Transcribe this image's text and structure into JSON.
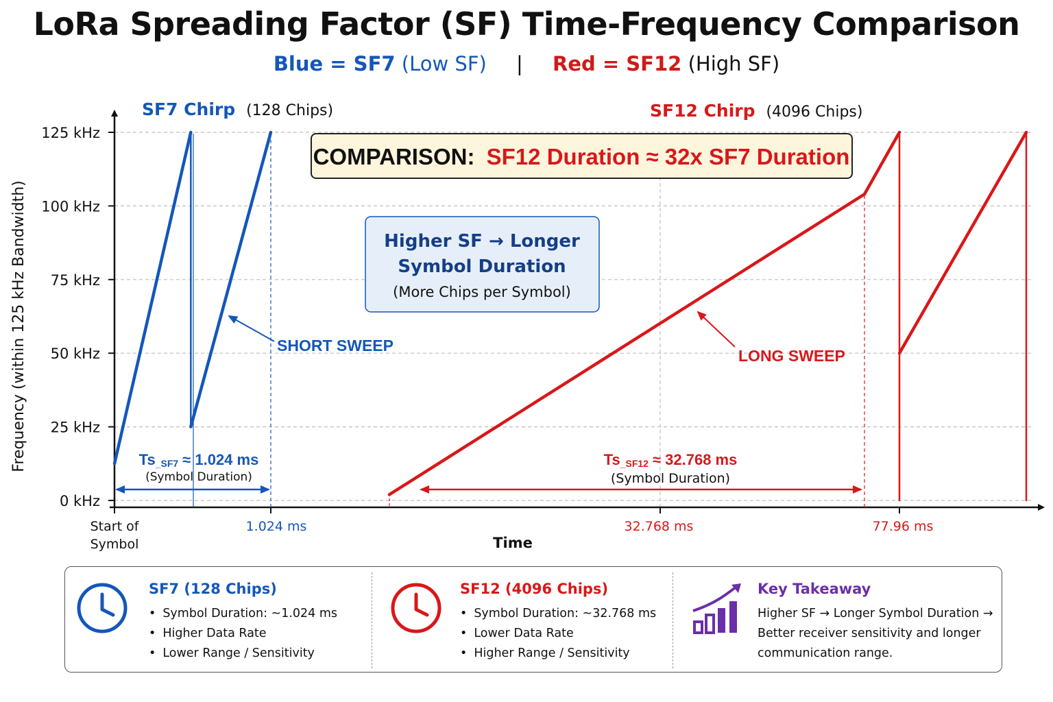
{
  "title": "LoRa Spreading Factor (SF) Time-Frequency Comparison",
  "legend": {
    "blue_part": "Blue = SF7",
    "blue_note": "(Low SF)",
    "separator": "|",
    "red_part": "Red = SF12",
    "red_note": "(High SF)"
  },
  "colors": {
    "blue": "#1457b8",
    "red": "#d8181a",
    "purple": "#6b2fa8"
  },
  "chart_data": {
    "type": "line",
    "ylabel": "Frequency (within 125 kHz Bandwidth)",
    "xlabel": "Time",
    "y_ticks": [
      "0 kHz",
      "25 kHz",
      "50 kHz",
      "75 kHz",
      "100 kHz",
      "125 kHz"
    ],
    "ylim": [
      0,
      125
    ],
    "x_tick_labels": [
      {
        "label": "Start of Symbol",
        "value": 0,
        "color": "#111111"
      },
      {
        "label": "1.024 ms",
        "value": 1.024,
        "color": "#1457b8"
      },
      {
        "label": "32.768 ms",
        "value": 32.768,
        "color": "#d8181a"
      },
      {
        "label": "77.96 ms",
        "value": 77.96,
        "color": "#d8181a"
      }
    ],
    "grid": true,
    "series": [
      {
        "name": "SF7",
        "chips_label": "(128 Chips)",
        "chirp_label": "SF7 Chirp",
        "color": "#1457b8",
        "segments": [
          [
            [
              0,
              12.5
            ],
            [
              0.5,
              125
            ]
          ],
          [
            [
              0.5,
              125
            ],
            [
              0.5,
              25
            ]
          ],
          [
            [
              0.5,
              25
            ],
            [
              1.024,
              125
            ]
          ]
        ]
      },
      {
        "name": "SF12",
        "chips_label": "(4096 Chips)",
        "chirp_label": "SF12 Chirp",
        "color": "#d8181a",
        "segments": [
          [
            [
              17.5,
              2
            ],
            [
              50,
              104
            ]
          ],
          [
            [
              50,
              104
            ],
            [
              52.4,
              125
            ]
          ],
          [
            [
              52.4,
              125
            ],
            [
              52.4,
              0
            ]
          ],
          [
            [
              52.4,
              50
            ],
            [
              60.2,
              125
            ]
          ],
          [
            [
              60.2,
              125
            ],
            [
              60.2,
              0
            ]
          ]
        ]
      }
    ],
    "annotations": {
      "comparison_prefix": "COMPARISON:",
      "comparison_text": "SF12 Duration ≈ 32x SF7 Duration",
      "info_box_line1": "Higher SF → Longer",
      "info_box_line2": "Symbol Duration",
      "info_box_line3": "(More Chips per Symbol)",
      "short_sweep": "SHORT SWEEP",
      "long_sweep": "LONG SWEEP",
      "ts_sf7_main": "Ts",
      "ts_sf7_sub": "_SF7",
      "ts_sf7_value": "≈ 1.024 ms",
      "ts_sf7_caption": "(Symbol Duration)",
      "ts_sf12_main": "Ts",
      "ts_sf12_sub": "_SF12",
      "ts_sf12_value": "≈ 32.768 ms",
      "ts_sf12_caption": "(Symbol Duration)"
    }
  },
  "panel": {
    "sf7": {
      "heading": "SF7 (128 Chips)",
      "icon": "clock-icon",
      "bullets": [
        "Symbol Duration: ~1.024 ms",
        "Higher Data Rate",
        "Lower Range / Sensitivity"
      ]
    },
    "sf12": {
      "heading": "SF12 (4096 Chips)",
      "icon": "clock-icon",
      "bullets": [
        "Symbol Duration: ~32.768 ms",
        "Lower Data Rate",
        "Higher Range / Sensitivity"
      ]
    },
    "takeaway": {
      "heading": "Key Takeaway",
      "icon": "bar-chart-growth-icon",
      "text": "Higher SF → Longer Symbol Duration → Better receiver sensitivity and longer communication range."
    }
  }
}
